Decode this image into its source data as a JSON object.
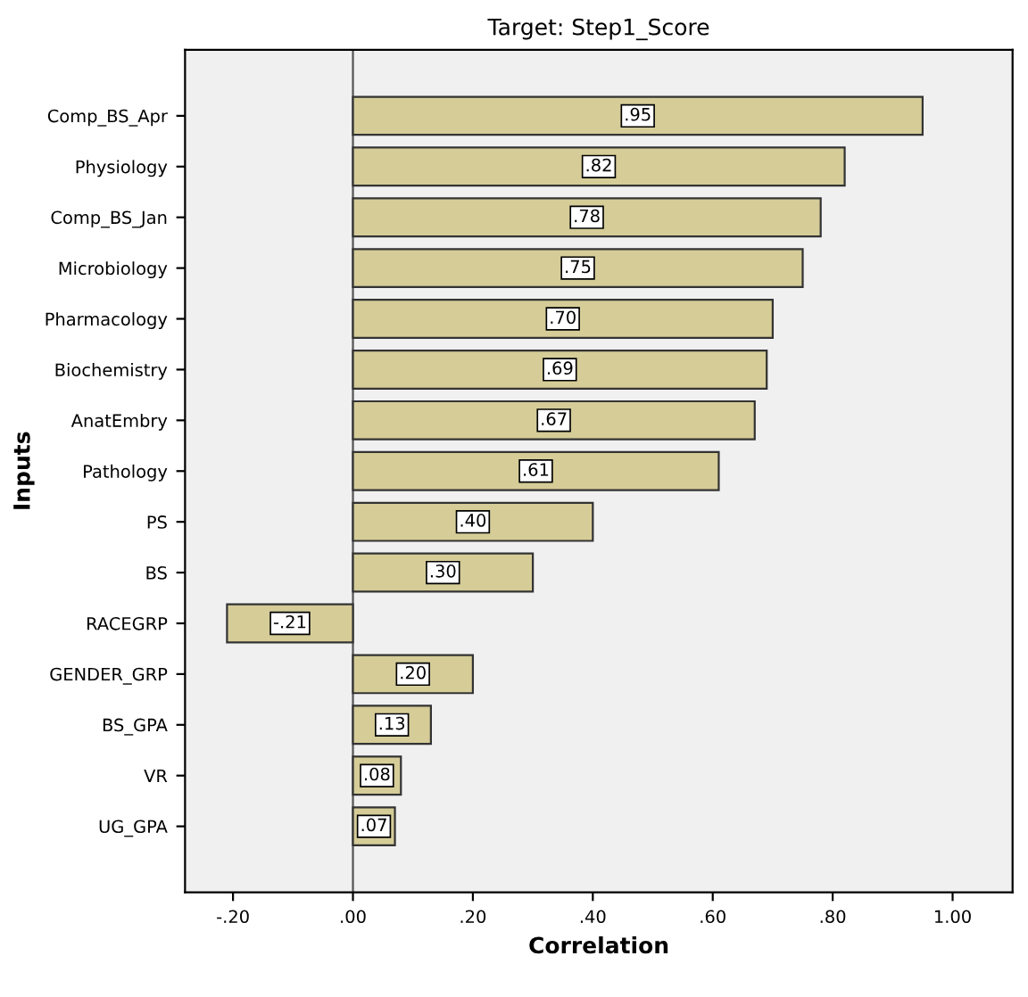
{
  "chart_data": {
    "type": "bar",
    "orientation": "horizontal",
    "title": "Target: Step1_Score",
    "xlabel": "Correlation",
    "ylabel": "Inputs",
    "categories": [
      "Comp_BS_Apr",
      "Physiology",
      "Comp_BS_Jan",
      "Microbiology",
      "Pharmacology",
      "Biochemistry",
      "AnatEmbry",
      "Pathology",
      "PS",
      "BS",
      "RACEGRP",
      "GENDER_GRP",
      "BS_GPA",
      "VR",
      "UG_GPA"
    ],
    "values": [
      0.95,
      0.82,
      0.78,
      0.75,
      0.7,
      0.69,
      0.67,
      0.61,
      0.4,
      0.3,
      -0.21,
      0.2,
      0.13,
      0.08,
      0.07
    ],
    "value_labels": [
      ".95",
      ".82",
      ".78",
      ".75",
      ".70",
      ".69",
      ".67",
      ".61",
      ".40",
      ".30",
      "-.21",
      ".20",
      ".13",
      ".08",
      ".07"
    ],
    "color": "#d5cc98",
    "xlim": [
      -0.28,
      1.1
    ],
    "xticks": [
      {
        "value": -0.2,
        "label": "-.20"
      },
      {
        "value": 0,
        "label": ".00"
      },
      {
        "value": 0.2,
        "label": ".20"
      },
      {
        "value": 0.4,
        "label": ".40"
      },
      {
        "value": 0.6,
        "label": ".60"
      },
      {
        "value": 0.8,
        "label": ".80"
      },
      {
        "value": 1.0,
        "label": "1.00"
      }
    ],
    "ref_lines": [
      {
        "axis": "x",
        "value": 0,
        "color": "#555555"
      }
    ],
    "grid": false,
    "legend": false
  }
}
